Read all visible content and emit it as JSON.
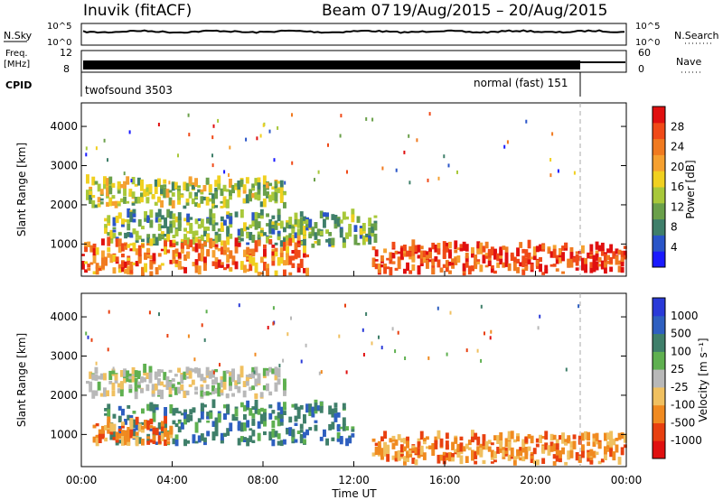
{
  "header": {
    "station": "Inuvik (fitACF)",
    "beam": "Beam 07",
    "date_range": "19/Aug/2015 – 20/Aug/2015"
  },
  "top_panels": {
    "nsky_label": "N.Sky",
    "nsky_ticks": [
      "10^5",
      "10^0"
    ],
    "nsearch_label": "N.Search",
    "nsearch_ticks": [
      "10^5",
      "10^0"
    ],
    "freq_label_1": "Freq.",
    "freq_label_2": "[MHz]",
    "freq_ticks": [
      "12",
      "8"
    ],
    "nave_label": "Nave",
    "nave_ticks": [
      "60",
      "0"
    ],
    "cpid_label": "CPID",
    "cpid_segments": [
      {
        "name": "twofsound 3503",
        "start_h": 0,
        "end_h": 22
      },
      {
        "name": "normal (fast) 151",
        "start_h": 22,
        "end_h": 24
      }
    ]
  },
  "chart_data": [
    {
      "type": "heatmap",
      "title": "Power",
      "xlabel": "",
      "ylabel": "Slant Range [km]",
      "xlim_hours": [
        0,
        24
      ],
      "ylim": [
        180,
        4600
      ],
      "ytick_labels": [
        "1000",
        "2000",
        "3000",
        "4000"
      ],
      "colorbar": {
        "label": "Power [dB]",
        "tick_labels": [
          "4",
          "8",
          "12",
          "16",
          "20",
          "24",
          "28"
        ],
        "colors": [
          "#1a1aff",
          "#2a55c8",
          "#3f7f6a",
          "#6aa04a",
          "#a8c83a",
          "#f0d020",
          "#f5a030",
          "#f07a20",
          "#f04a18",
          "#e01010"
        ]
      },
      "bands": [
        {
          "name": "upper_layer",
          "start_h": 0.2,
          "end_h": 9,
          "range_km": [
            1900,
            2550
          ],
          "value": 14
        },
        {
          "name": "mid_patches",
          "start_h": 1,
          "end_h": 13,
          "range_km": [
            900,
            1700
          ],
          "value": 10
        },
        {
          "name": "lower_strong",
          "start_h": 0,
          "end_h": 10,
          "range_km": [
            180,
            1000
          ],
          "value": 24
        },
        {
          "name": "afternoon_strong",
          "start_h": 12.8,
          "end_h": 24,
          "range_km": [
            200,
            900
          ],
          "value": 26
        }
      ]
    },
    {
      "type": "heatmap",
      "title": "Velocity",
      "xlabel": "Time UT",
      "ylabel": "Slant Range [km]",
      "xlim_hours": [
        0,
        24
      ],
      "ylim": [
        180,
        4600
      ],
      "x_tick_labels": [
        "00:00",
        "04:00",
        "08:00",
        "12:00",
        "16:00",
        "20:00",
        "00:00"
      ],
      "ytick_labels": [
        "1000",
        "2000",
        "3000",
        "4000"
      ],
      "colorbar": {
        "label": "Velocity [m s⁻¹]",
        "tick_labels": [
          "1000",
          "500",
          "100",
          "25",
          "-25",
          "-100",
          "-500",
          "-1000"
        ],
        "colors": [
          "#2a3ad8",
          "#2e5fc0",
          "#3f7f6a",
          "#5fb050",
          "#b8b8b8",
          "#f0c060",
          "#f08a20",
          "#e84010",
          "#e01010"
        ]
      },
      "bands": [
        {
          "name": "ground_scatter_upper",
          "start_h": 0.2,
          "end_h": 9,
          "range_km": [
            1900,
            2600
          ],
          "value": 0
        },
        {
          "name": "mid_positive",
          "start_h": 1,
          "end_h": 12,
          "range_km": [
            700,
            1700
          ],
          "value": 150
        },
        {
          "name": "lower_negative",
          "start_h": 0.5,
          "end_h": 4,
          "range_km": [
            700,
            1300
          ],
          "value": -300
        },
        {
          "name": "afternoon_negative",
          "start_h": 12.8,
          "end_h": 24,
          "range_km": [
            200,
            900
          ],
          "value": -150
        }
      ]
    }
  ]
}
